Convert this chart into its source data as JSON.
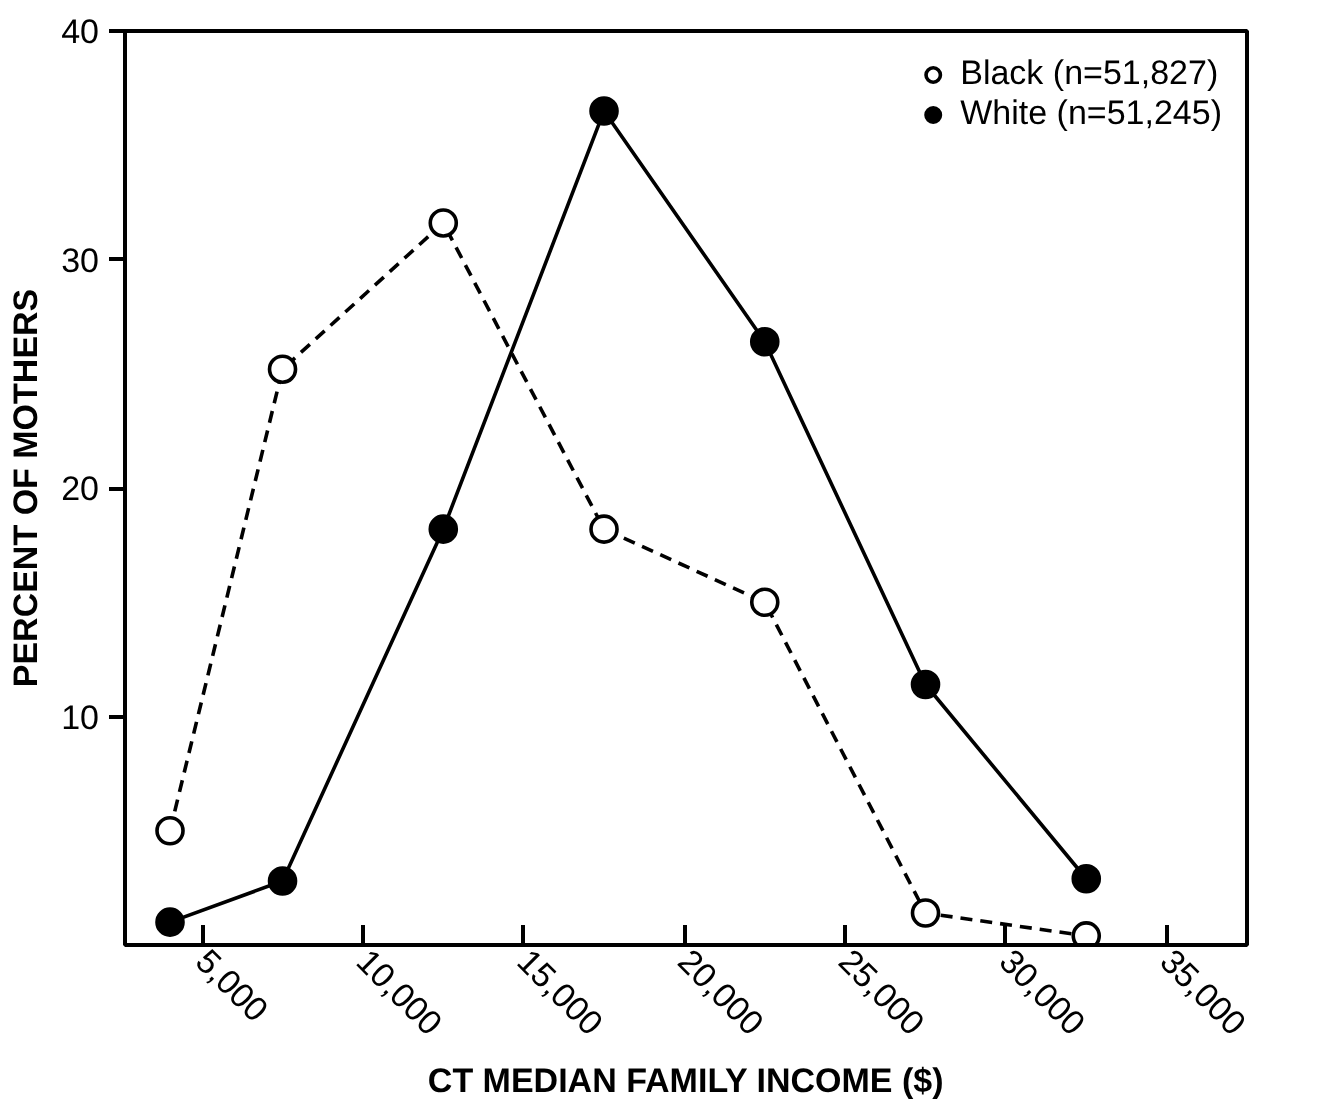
{
  "chart_data": {
    "type": "line",
    "xlabel": "CT MEDIAN FAMILY INCOME ($)",
    "ylabel": "PERCENT OF MOTHERS",
    "x": [
      4000,
      7500,
      12500,
      17500,
      22500,
      27500,
      32500
    ],
    "series": [
      {
        "name": "Black (n=51,827)",
        "color": "#000000",
        "line_style": "dashed",
        "values": [
          5.0,
          25.2,
          31.6,
          18.2,
          15.0,
          1.4,
          0.4
        ]
      },
      {
        "name": "White (n=51,245)",
        "color": "#000000",
        "line_style": "solid",
        "values": [
          1.0,
          2.8,
          18.2,
          36.5,
          26.4,
          11.4,
          2.9
        ]
      }
    ],
    "xlim": [
      2600,
      37500
    ],
    "xticks": [
      {
        "value": 5000,
        "label": "5,000"
      },
      {
        "value": 10000,
        "label": "10,000"
      },
      {
        "value": 15000,
        "label": "15,000"
      },
      {
        "value": 20000,
        "label": "20,000"
      },
      {
        "value": 25000,
        "label": "25,000"
      },
      {
        "value": 30000,
        "label": "30,000"
      },
      {
        "value": 35000,
        "label": "35,000"
      }
    ],
    "ylim": [
      0,
      40
    ],
    "yticks": [
      10,
      20,
      30,
      40
    ],
    "grid": false,
    "legend": "top right",
    "marker": "circle"
  }
}
